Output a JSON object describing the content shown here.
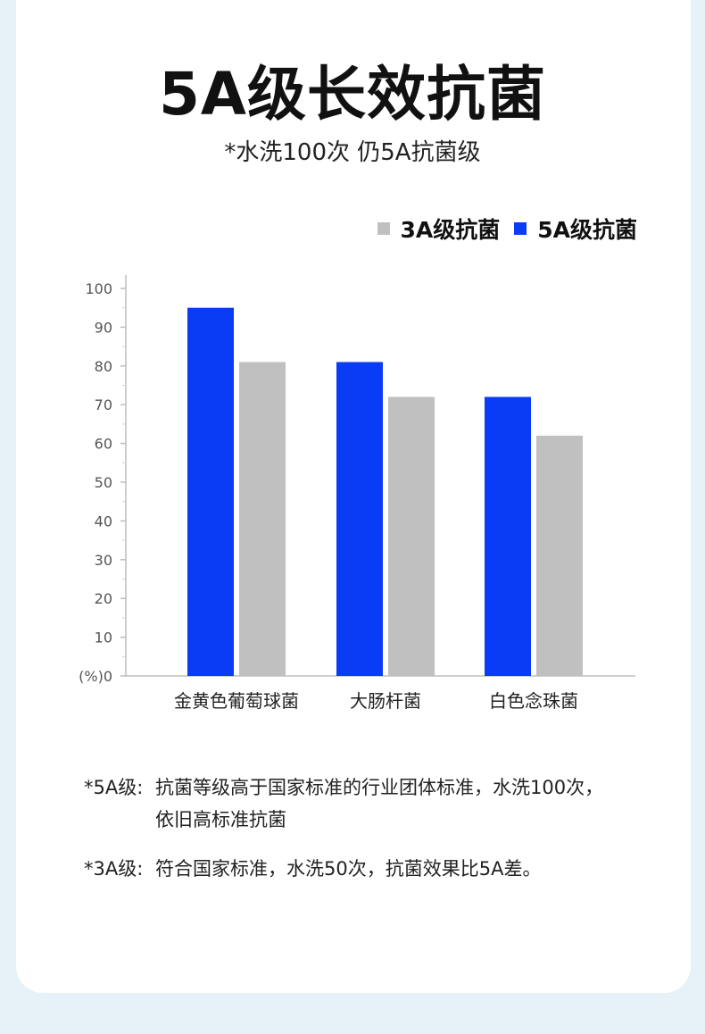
{
  "header": {
    "title": "5A级长效抗菌",
    "subtitle": "*水洗100次 仍5A抗菌级"
  },
  "colors": {
    "grade_3a": "#c0c0c0",
    "grade_5a": "#0a3cf5"
  },
  "chart_data": {
    "type": "bar",
    "categories": [
      "金黄色葡萄球菌",
      "大肠杆菌",
      "白色念珠菌"
    ],
    "series": [
      {
        "name": "5A级抗菌",
        "values": [
          95,
          81,
          72
        ],
        "color": "#0a3cf5"
      },
      {
        "name": "3A级抗菌",
        "values": [
          81,
          72,
          62
        ],
        "color": "#c0c0c0"
      }
    ],
    "legend_order": [
      "3A级抗菌",
      "5A级抗菌"
    ],
    "legend_colors": [
      "#c0c0c0",
      "#0a3cf5"
    ],
    "yticks": [
      "(%)0",
      "10",
      "20",
      "30",
      "40",
      "50",
      "60",
      "70",
      "80",
      "90",
      "100"
    ],
    "ylim": [
      0,
      100
    ],
    "legend_position": "top-right"
  },
  "notes": [
    {
      "key": "*5A级:",
      "lines": [
        "抗菌等级高于国家标准的行业团体标准，水洗100次，",
        "依旧高标准抗菌"
      ]
    },
    {
      "key": "*3A级:",
      "lines": [
        "符合国家标准，水洗50次，抗菌效果比5A差。"
      ]
    }
  ]
}
